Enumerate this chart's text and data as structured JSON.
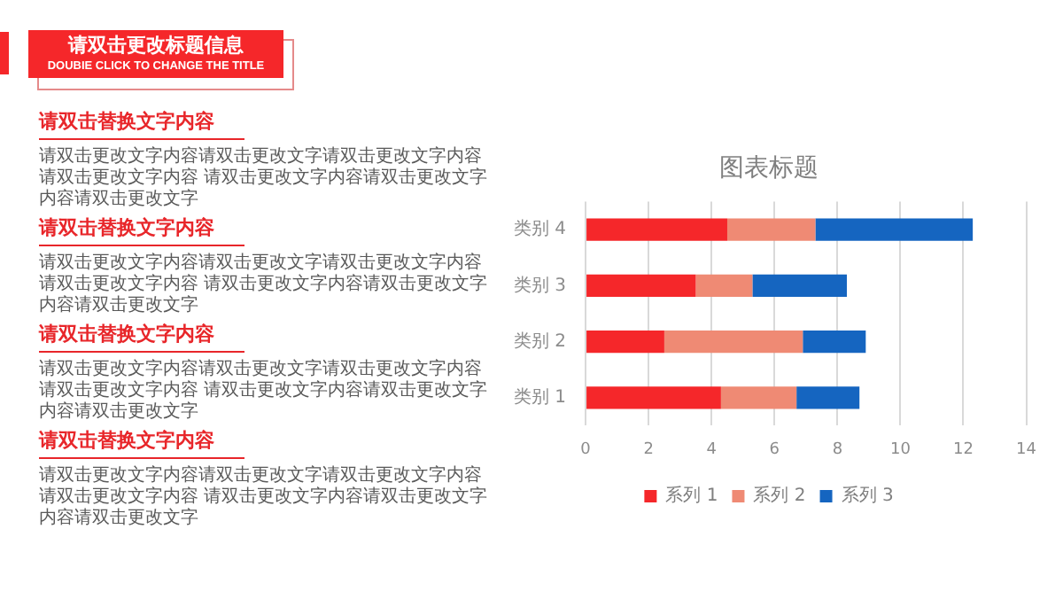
{
  "chart_data": {
    "type": "bar",
    "orientation": "horizontal",
    "stacked": true,
    "title": "图表标题",
    "categories": [
      "类别 4",
      "类别 3",
      "类别 2",
      "类别 1"
    ],
    "series": [
      {
        "name": "系列 1",
        "color": "#f5272a",
        "values": [
          4.5,
          3.5,
          2.5,
          4.3
        ]
      },
      {
        "name": "系列 2",
        "color": "#ef8a74",
        "values": [
          2.8,
          1.8,
          4.4,
          2.4
        ]
      },
      {
        "name": "系列 3",
        "color": "#1565c0",
        "values": [
          5,
          3,
          2,
          2
        ]
      }
    ],
    "xlim": [
      0,
      14
    ],
    "xticks": [
      0,
      2,
      4,
      6,
      8,
      10,
      12,
      14
    ],
    "grid": "x",
    "legend": "bottom",
    "annotations": [
      "请双击更改标题信息",
      "DOUBIE CLICK TO CHANGE THE TITLE",
      "请双击替换文字内容",
      "请双击更改文字内容请双击更改文字请双击更改文字内容请双击更改文字内容 请双击更改文字内容请双击更改文字内容请双击更改文字",
      "请双击替换文字内容",
      "请双击更改文字内容请双击更改文字请双击更改文字内容请双击更改文字内容 请双击更改文字内容请双击更改文字内容请双击更改文字",
      "请双击替换文字内容",
      "请双击更改文字内容请双击更改文字请双击更改文字内容请双击更改文字内容 请双击更改文字内容请双击更改文字内容请双击更改文字",
      "请双击替换文字内容",
      "请双击更改文字内容请双击更改文字请双击更改文字内容请双击更改文字内容 请双击更改文字内容请双击更改文字内容请双击更改文字"
    ]
  }
}
